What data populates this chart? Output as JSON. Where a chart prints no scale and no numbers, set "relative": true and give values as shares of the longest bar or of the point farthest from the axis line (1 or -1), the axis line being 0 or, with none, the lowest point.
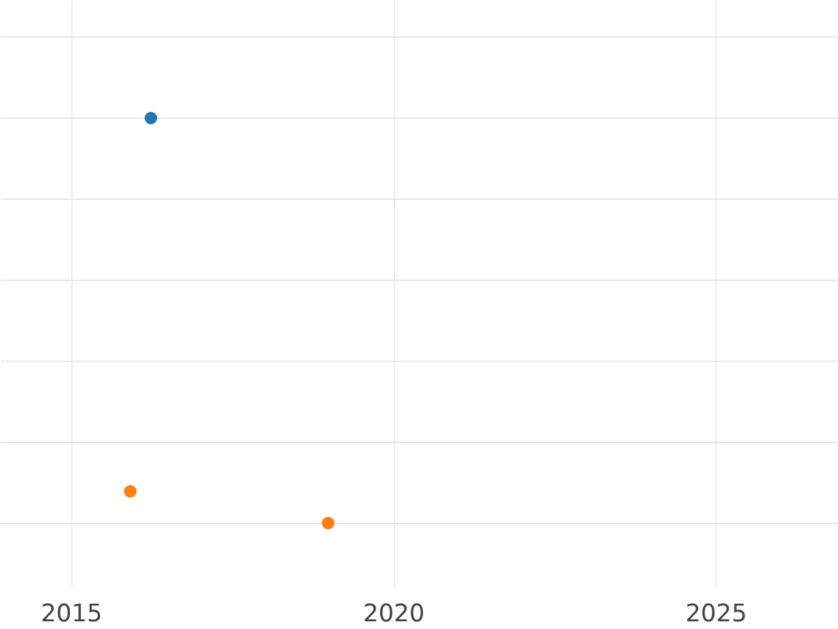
{
  "chart_data": {
    "type": "scatter",
    "relative": true,
    "xlim": [
      2013.9,
      2026.9
    ],
    "xticks": [
      2015,
      2020,
      2025
    ],
    "grid": true,
    "marker": "circle",
    "series": [
      {
        "color": "#1f77b4",
        "x": [
          2016.23
        ],
        "values": [
          1
        ]
      },
      {
        "color": "#ff7f0e",
        "x": [
          2015.91,
          2018.98
        ],
        "values": [
          0.078,
          0
        ]
      }
    ]
  }
}
